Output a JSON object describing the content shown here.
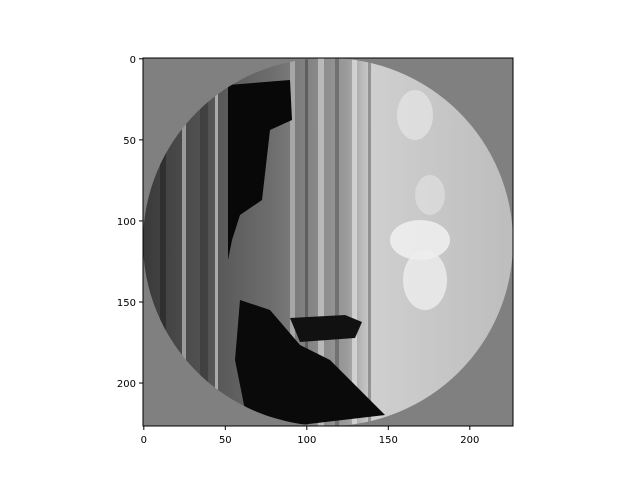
{
  "chart_data": {
    "type": "image",
    "description_free": true,
    "xlim": [
      0,
      227
    ],
    "ylim": [
      0,
      227
    ],
    "x_ticks": [
      0,
      50,
      100,
      150,
      200
    ],
    "y_ticks": [
      0,
      50,
      100,
      150,
      200
    ],
    "x_tick_labels": [
      "0",
      "50",
      "100",
      "150",
      "200"
    ],
    "y_tick_labels": [
      "0",
      "50",
      "100",
      "150",
      "200"
    ],
    "background_gray": "#808080",
    "grid": false
  }
}
